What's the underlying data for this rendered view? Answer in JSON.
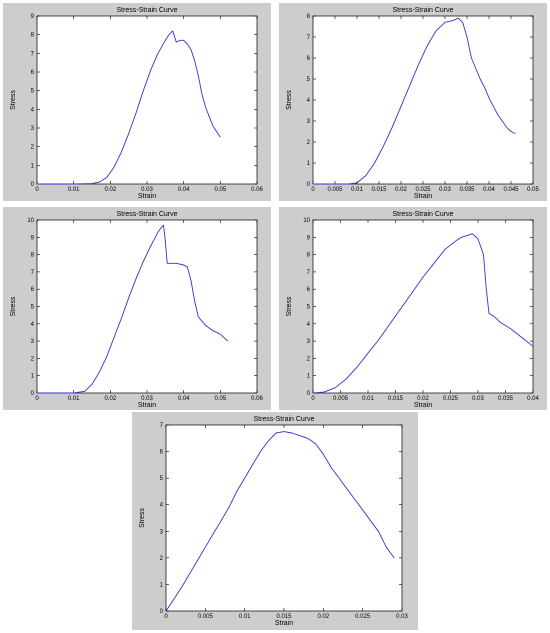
{
  "chart_data": [
    {
      "type": "line",
      "title": "Stress-Strain Curve",
      "xlabel": "Strain",
      "ylabel": "Stress",
      "xlim": [
        0,
        0.06
      ],
      "ylim": [
        0,
        9
      ],
      "xticks": [
        "0",
        "0.01",
        "0.02",
        "0.03",
        "0.04",
        "0.05",
        "0.06"
      ],
      "yticks": [
        "0",
        "1",
        "2",
        "3",
        "4",
        "5",
        "6",
        "7",
        "8",
        "9"
      ],
      "grid": false,
      "line_color": "#3333cc",
      "series": [
        {
          "x": [
            0,
            0.01,
            0.015,
            0.017,
            0.019,
            0.021,
            0.023,
            0.025,
            0.027,
            0.029,
            0.031,
            0.033,
            0.035,
            0.036,
            0.037,
            0.0375,
            0.038,
            0.039,
            0.04,
            0.041,
            0.042,
            0.043,
            0.044,
            0.045,
            0.046,
            0.047,
            0.048,
            0.049,
            0.05
          ],
          "y": [
            0,
            0,
            0.02,
            0.1,
            0.35,
            0.9,
            1.7,
            2.7,
            3.8,
            5.0,
            6.1,
            7.0,
            7.7,
            8.0,
            8.2,
            7.9,
            7.6,
            7.7,
            7.7,
            7.5,
            7.2,
            6.6,
            5.8,
            4.8,
            4.1,
            3.6,
            3.1,
            2.8,
            2.5
          ]
        }
      ]
    },
    {
      "type": "line",
      "title": "Stress-Strain Curve",
      "xlabel": "Strain",
      "ylabel": "Stress",
      "xlim": [
        0,
        0.05
      ],
      "ylim": [
        0,
        8
      ],
      "xticks": [
        "0",
        "0.005",
        "0.01",
        "0.015",
        "0.02",
        "0.025",
        "0.03",
        "0.035",
        "0.04",
        "0.045",
        "0.05"
      ],
      "yticks": [
        "0",
        "1",
        "2",
        "3",
        "4",
        "5",
        "6",
        "7",
        "8"
      ],
      "grid": false,
      "line_color": "#3333cc",
      "series": [
        {
          "x": [
            0,
            0.008,
            0.01,
            0.012,
            0.014,
            0.016,
            0.018,
            0.02,
            0.022,
            0.024,
            0.026,
            0.028,
            0.03,
            0.031,
            0.032,
            0.033,
            0.034,
            0.035,
            0.036,
            0.037,
            0.038,
            0.039,
            0.04,
            0.041,
            0.042,
            0.043,
            0.044,
            0.045,
            0.046
          ],
          "y": [
            0,
            0,
            0.05,
            0.4,
            1.0,
            1.8,
            2.7,
            3.7,
            4.7,
            5.7,
            6.6,
            7.3,
            7.7,
            7.75,
            7.8,
            7.9,
            7.7,
            7.0,
            6.0,
            5.5,
            5.0,
            4.6,
            4.1,
            3.7,
            3.3,
            3.0,
            2.7,
            2.5,
            2.4
          ]
        }
      ]
    },
    {
      "type": "line",
      "title": "Stress-Strain Curve",
      "xlabel": "Strain",
      "ylabel": "Stress",
      "xlim": [
        0,
        0.06
      ],
      "ylim": [
        0,
        10
      ],
      "xticks": [
        "0",
        "0.01",
        "0.02",
        "0.03",
        "0.04",
        "0.05",
        "0.06"
      ],
      "yticks": [
        "0",
        "1",
        "2",
        "3",
        "4",
        "5",
        "6",
        "7",
        "8",
        "9",
        "10"
      ],
      "grid": false,
      "line_color": "#3333cc",
      "series": [
        {
          "x": [
            0,
            0.01,
            0.013,
            0.015,
            0.017,
            0.019,
            0.021,
            0.023,
            0.025,
            0.027,
            0.029,
            0.031,
            0.033,
            0.034,
            0.0345,
            0.035,
            0.0355,
            0.036,
            0.038,
            0.04,
            0.041,
            0.042,
            0.043,
            0.044,
            0.046,
            0.048,
            0.05,
            0.051,
            0.052
          ],
          "y": [
            0,
            0,
            0.1,
            0.5,
            1.2,
            2.1,
            3.2,
            4.3,
            5.5,
            6.6,
            7.6,
            8.5,
            9.3,
            9.6,
            9.7,
            8.8,
            7.5,
            7.5,
            7.5,
            7.4,
            7.3,
            6.5,
            5.3,
            4.4,
            3.9,
            3.6,
            3.4,
            3.2,
            3.0
          ]
        }
      ]
    },
    {
      "type": "line",
      "title": "Stress-Strain Curve",
      "xlabel": "Strain",
      "ylabel": "Stress",
      "xlim": [
        0,
        0.04
      ],
      "ylim": [
        0,
        10
      ],
      "xticks": [
        "0",
        "0.005",
        "0.01",
        "0.015",
        "0.02",
        "0.025",
        "0.03",
        "0.035",
        "0.04"
      ],
      "yticks": [
        "0",
        "1",
        "2",
        "3",
        "4",
        "5",
        "6",
        "7",
        "8",
        "9",
        "10"
      ],
      "grid": false,
      "line_color": "#3333cc",
      "series": [
        {
          "x": [
            0,
            0.002,
            0.004,
            0.006,
            0.008,
            0.01,
            0.012,
            0.014,
            0.016,
            0.018,
            0.02,
            0.022,
            0.024,
            0.026,
            0.027,
            0.028,
            0.029,
            0.03,
            0.031,
            0.0315,
            0.032,
            0.033,
            0.034,
            0.036,
            0.038,
            0.04
          ],
          "y": [
            0,
            0.05,
            0.3,
            0.8,
            1.5,
            2.3,
            3.1,
            4.0,
            4.9,
            5.8,
            6.7,
            7.5,
            8.3,
            8.8,
            9.0,
            9.1,
            9.2,
            8.9,
            8.0,
            6.0,
            4.6,
            4.4,
            4.1,
            3.7,
            3.2,
            2.7
          ]
        }
      ]
    },
    {
      "type": "line",
      "title": "Stress-Strain Curve",
      "xlabel": "Strain",
      "ylabel": "Stress",
      "xlim": [
        0,
        0.03
      ],
      "ylim": [
        0,
        7
      ],
      "xticks": [
        "0",
        "0.005",
        "0.01",
        "0.015",
        "0.02",
        "0.025",
        "0.03"
      ],
      "yticks": [
        "0",
        "1",
        "2",
        "3",
        "4",
        "5",
        "6",
        "7"
      ],
      "grid": false,
      "line_color": "#3333cc",
      "series": [
        {
          "x": [
            0,
            0.001,
            0.002,
            0.003,
            0.004,
            0.005,
            0.006,
            0.007,
            0.008,
            0.009,
            0.01,
            0.011,
            0.012,
            0.013,
            0.014,
            0.015,
            0.016,
            0.017,
            0.018,
            0.019,
            0.02,
            0.021,
            0.022,
            0.023,
            0.024,
            0.025,
            0.026,
            0.027,
            0.028,
            0.029
          ],
          "y": [
            0,
            0.45,
            0.9,
            1.4,
            1.9,
            2.4,
            2.9,
            3.4,
            3.9,
            4.5,
            5.0,
            5.5,
            6.0,
            6.4,
            6.7,
            6.75,
            6.7,
            6.6,
            6.5,
            6.3,
            5.9,
            5.4,
            5.0,
            4.6,
            4.2,
            3.8,
            3.4,
            3.0,
            2.4,
            2.0
          ]
        }
      ]
    }
  ]
}
